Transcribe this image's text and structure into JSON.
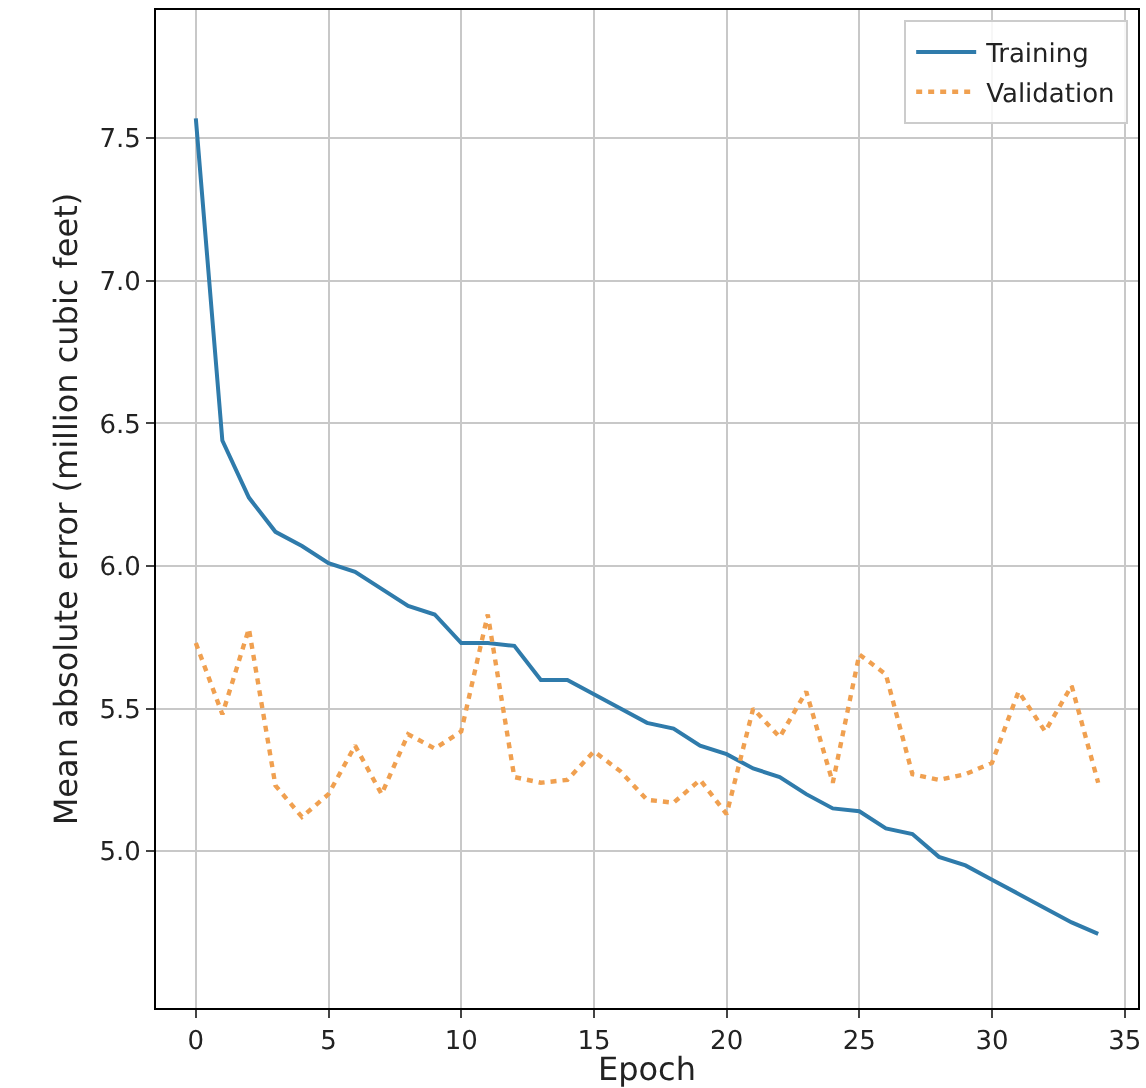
{
  "chart_data": {
    "type": "line",
    "xlabel": "Epoch",
    "ylabel": "Mean absolute error (million cubic feet)",
    "x": [
      0,
      1,
      2,
      3,
      4,
      5,
      6,
      7,
      8,
      9,
      10,
      11,
      12,
      13,
      14,
      15,
      16,
      17,
      18,
      19,
      20,
      21,
      22,
      23,
      24,
      25,
      26,
      27,
      28,
      29,
      30,
      31,
      32,
      33,
      34
    ],
    "series": [
      {
        "name": "Training",
        "color": "#2f7bab",
        "line_style": "solid",
        "values": [
          7.57,
          6.44,
          6.24,
          6.12,
          6.07,
          6.01,
          5.98,
          5.92,
          5.86,
          5.83,
          5.73,
          5.73,
          5.72,
          5.6,
          5.6,
          5.55,
          5.5,
          5.45,
          5.43,
          5.37,
          5.34,
          5.29,
          5.26,
          5.2,
          5.15,
          5.14,
          5.08,
          5.06,
          4.98,
          4.95,
          4.9,
          4.85,
          4.8,
          4.75,
          4.71
        ]
      },
      {
        "name": "Validation",
        "color": "#f0a050",
        "line_style": "dotted",
        "values": [
          5.73,
          5.48,
          5.78,
          5.23,
          5.12,
          5.2,
          5.37,
          5.2,
          5.41,
          5.36,
          5.42,
          5.83,
          5.26,
          5.24,
          5.25,
          5.35,
          5.28,
          5.18,
          5.17,
          5.25,
          5.13,
          5.5,
          5.4,
          5.56,
          5.24,
          5.69,
          5.62,
          5.27,
          5.25,
          5.27,
          5.31,
          5.56,
          5.42,
          5.58,
          5.24
        ]
      }
    ],
    "xlim": [
      -1.5,
      35.5
    ],
    "xticks": [
      0,
      5,
      10,
      15,
      20,
      25,
      30,
      35
    ],
    "ylim": [
      4.45,
      7.95
    ],
    "yticks": [
      {
        "value": 5,
        "label": "5.0"
      },
      5.5,
      {
        "value": 6,
        "label": "6.0"
      },
      6.5,
      {
        "value": 7,
        "label": "7.0"
      },
      7.5
    ],
    "grid": true,
    "legend": "top right"
  }
}
